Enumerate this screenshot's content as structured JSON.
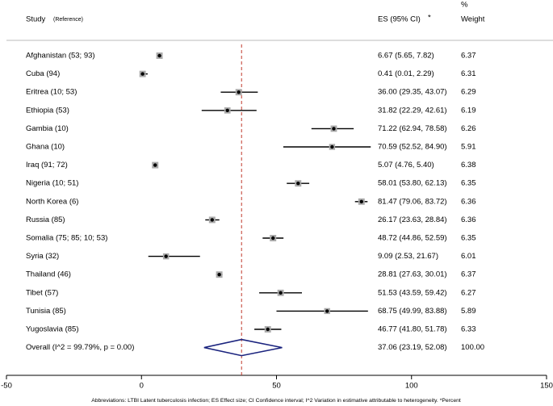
{
  "chart_data": {
    "type": "forest",
    "header": {
      "study": "Study",
      "reference": "(Reference)",
      "es": "ES (95% CI)",
      "es_marker": "*",
      "weight_top": "%",
      "weight": "Weight"
    },
    "studies": [
      "Afghanistan (53; 93)",
      "Cuba (94)",
      "Eritrea (10; 53)",
      "Ethiopia (53)",
      "Gambia (10)",
      "Ghana (10)",
      "Iraq (91; 72)",
      "Nigeria (10; 51)",
      "North Korea (6)",
      "Russia (85)",
      "Somalia (75; 85; 10; 53)",
      "Syria (32)",
      "Thailand (46)",
      "Tibet (57)",
      "Tunisia (85)",
      "Yugoslavia (85)"
    ],
    "es": [
      6.67,
      0.41,
      36.0,
      31.82,
      71.22,
      70.59,
      5.07,
      58.01,
      81.47,
      26.17,
      48.72,
      9.09,
      28.81,
      51.53,
      68.75,
      46.77
    ],
    "lower": [
      5.65,
      0.01,
      29.35,
      22.29,
      62.94,
      52.52,
      4.76,
      53.8,
      79.06,
      23.63,
      44.86,
      2.53,
      27.63,
      43.59,
      49.99,
      41.8
    ],
    "upper": [
      7.82,
      2.29,
      43.07,
      42.61,
      78.58,
      84.9,
      5.4,
      62.13,
      83.72,
      28.84,
      52.59,
      21.67,
      30.01,
      59.42,
      83.88,
      51.78
    ],
    "es_labels": [
      "6.67 (5.65, 7.82)",
      "0.41 (0.01, 2.29)",
      "36.00 (29.35, 43.07)",
      "31.82 (22.29, 42.61)",
      "71.22 (62.94, 78.58)",
      "70.59 (52.52, 84.90)",
      "5.07 (4.76, 5.40)",
      "58.01 (53.80, 62.13)",
      "81.47 (79.06, 83.72)",
      "26.17 (23.63, 28.84)",
      "48.72 (44.86, 52.59)",
      "9.09 (2.53, 21.67)",
      "28.81 (27.63, 30.01)",
      "51.53 (43.59, 59.42)",
      "68.75 (49.99, 83.88)",
      "46.77 (41.80, 51.78)"
    ],
    "weights": [
      6.37,
      6.31,
      6.29,
      6.19,
      6.26,
      5.91,
      6.38,
      6.35,
      6.36,
      6.36,
      6.35,
      6.01,
      6.37,
      6.27,
      5.89,
      6.33
    ],
    "overall": {
      "label": "Overall  (I^2 = 99.79%, p = 0.00)",
      "es": 37.06,
      "lower": 23.19,
      "upper": 52.08,
      "es_label": "37.06 (23.19, 52.08)",
      "weight": "100.00"
    },
    "xlim": [
      -50,
      150
    ],
    "xticks": [
      -50,
      0,
      50,
      100,
      150
    ],
    "footnote": "Abbreviations: LTBI Latent tuberculosis infection; ES Effect size; CI Confidence interval; I^2 Variation in estimative attributable to heterogeneity. *Percent"
  }
}
